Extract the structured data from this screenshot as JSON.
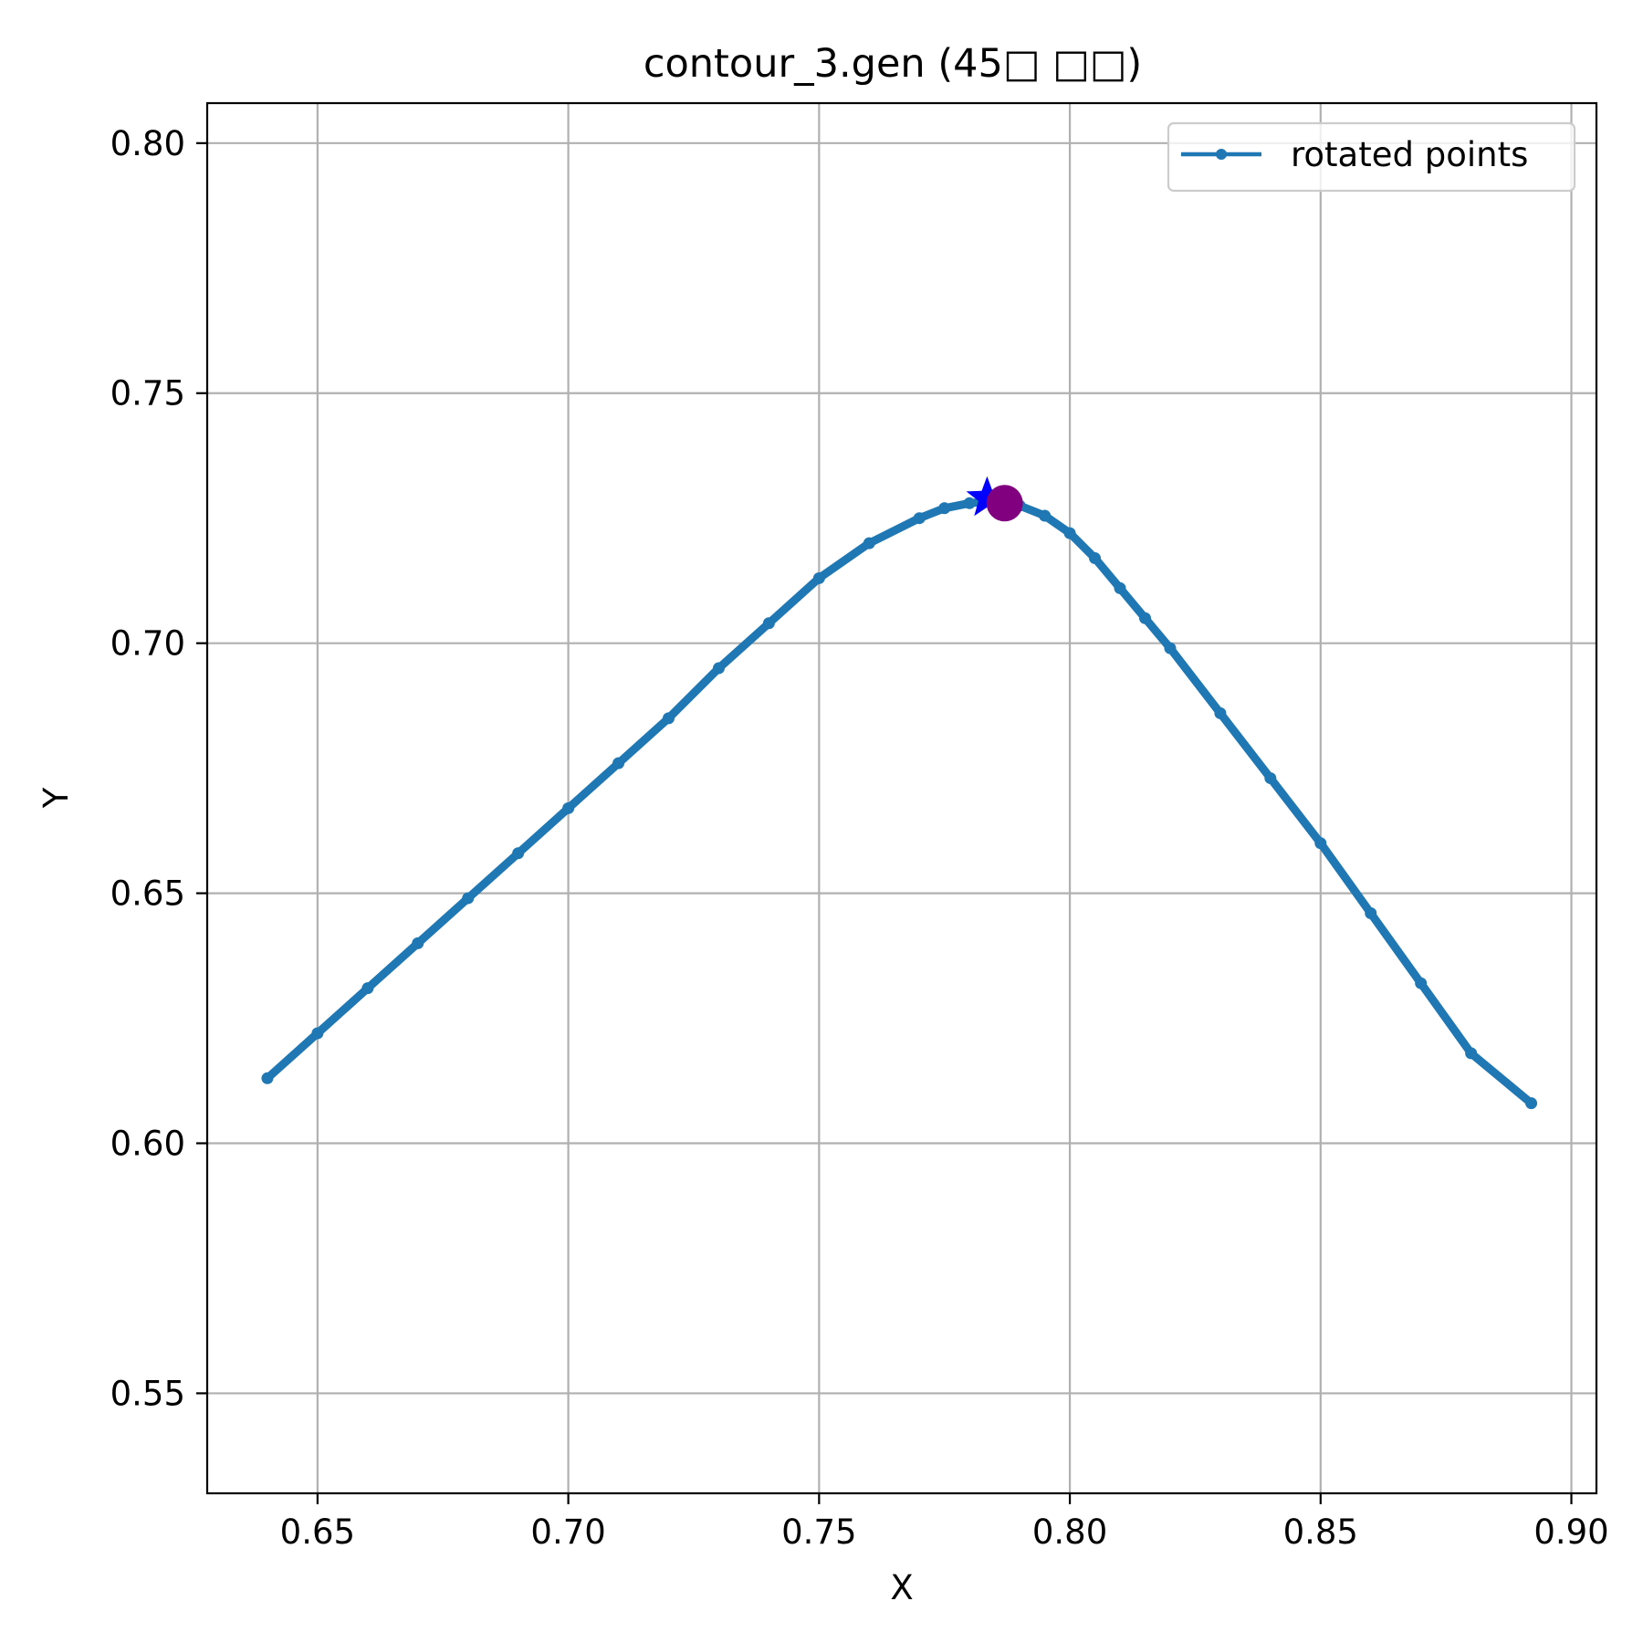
{
  "colors": {
    "series": "#1f77b4",
    "star_marker": "#0000ff",
    "circle_marker": "#800080",
    "grid": "#b0b0b0",
    "axes": "#000000"
  },
  "chart_data": {
    "type": "line",
    "title": "contour_3.gen (45□ □□)",
    "xlabel": "X",
    "ylabel": "Y",
    "xlim": [
      0.628,
      0.905
    ],
    "ylim": [
      0.53,
      0.808
    ],
    "grid": true,
    "legend_position": "top-right",
    "xticks": [
      0.65,
      0.7,
      0.75,
      0.8,
      0.85,
      0.9
    ],
    "xtick_labels": [
      "0.65",
      "0.70",
      "0.75",
      "0.80",
      "0.85",
      "0.90"
    ],
    "yticks": [
      0.55,
      0.6,
      0.65,
      0.7,
      0.75,
      0.8
    ],
    "ytick_labels": [
      "0.55",
      "0.60",
      "0.65",
      "0.70",
      "0.75",
      "0.80"
    ],
    "series": [
      {
        "name": "rotated points",
        "marker": "point",
        "x": [
          0.64,
          0.65,
          0.66,
          0.67,
          0.68,
          0.69,
          0.7,
          0.71,
          0.72,
          0.73,
          0.74,
          0.75,
          0.76,
          0.77,
          0.775,
          0.78,
          0.785,
          0.79,
          0.795,
          0.8,
          0.805,
          0.81,
          0.815,
          0.82,
          0.83,
          0.84,
          0.85,
          0.86,
          0.87,
          0.88,
          0.892
        ],
        "y": [
          0.613,
          0.622,
          0.631,
          0.64,
          0.649,
          0.658,
          0.667,
          0.676,
          0.685,
          0.695,
          0.704,
          0.713,
          0.72,
          0.725,
          0.727,
          0.728,
          0.7285,
          0.7275,
          0.7255,
          0.722,
          0.717,
          0.711,
          0.705,
          0.699,
          0.686,
          0.673,
          0.66,
          0.646,
          0.632,
          0.618,
          0.608
        ]
      }
    ],
    "markers": [
      {
        "shape": "star",
        "x": 0.7835,
        "y": 0.729
      },
      {
        "shape": "circle",
        "x": 0.787,
        "y": 0.728
      }
    ]
  }
}
